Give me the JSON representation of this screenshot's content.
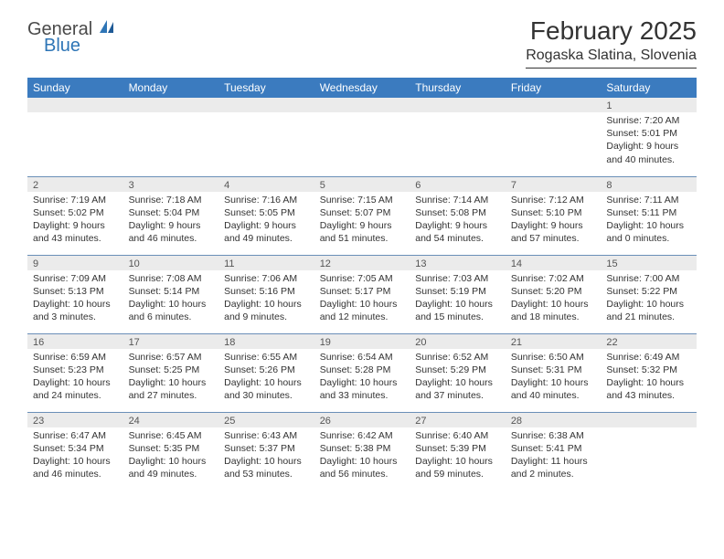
{
  "brand": {
    "name_top": "General",
    "name_bottom": "Blue",
    "accent_color": "#2e75b6"
  },
  "header": {
    "month_title": "February 2025",
    "location": "Rogaska Slatina, Slovenia"
  },
  "colors": {
    "header_bg": "#3b7bbf",
    "header_fg": "#ffffff",
    "daynum_bg": "#ebebeb",
    "week_divider": "#6a8fb8",
    "text": "#333333"
  },
  "day_headers": [
    "Sunday",
    "Monday",
    "Tuesday",
    "Wednesday",
    "Thursday",
    "Friday",
    "Saturday"
  ],
  "weeks": [
    [
      null,
      null,
      null,
      null,
      null,
      null,
      {
        "num": "1",
        "sunrise": "7:20 AM",
        "sunset": "5:01 PM",
        "daylight": "9 hours and 40 minutes."
      }
    ],
    [
      {
        "num": "2",
        "sunrise": "7:19 AM",
        "sunset": "5:02 PM",
        "daylight": "9 hours and 43 minutes."
      },
      {
        "num": "3",
        "sunrise": "7:18 AM",
        "sunset": "5:04 PM",
        "daylight": "9 hours and 46 minutes."
      },
      {
        "num": "4",
        "sunrise": "7:16 AM",
        "sunset": "5:05 PM",
        "daylight": "9 hours and 49 minutes."
      },
      {
        "num": "5",
        "sunrise": "7:15 AM",
        "sunset": "5:07 PM",
        "daylight": "9 hours and 51 minutes."
      },
      {
        "num": "6",
        "sunrise": "7:14 AM",
        "sunset": "5:08 PM",
        "daylight": "9 hours and 54 minutes."
      },
      {
        "num": "7",
        "sunrise": "7:12 AM",
        "sunset": "5:10 PM",
        "daylight": "9 hours and 57 minutes."
      },
      {
        "num": "8",
        "sunrise": "7:11 AM",
        "sunset": "5:11 PM",
        "daylight": "10 hours and 0 minutes."
      }
    ],
    [
      {
        "num": "9",
        "sunrise": "7:09 AM",
        "sunset": "5:13 PM",
        "daylight": "10 hours and 3 minutes."
      },
      {
        "num": "10",
        "sunrise": "7:08 AM",
        "sunset": "5:14 PM",
        "daylight": "10 hours and 6 minutes."
      },
      {
        "num": "11",
        "sunrise": "7:06 AM",
        "sunset": "5:16 PM",
        "daylight": "10 hours and 9 minutes."
      },
      {
        "num": "12",
        "sunrise": "7:05 AM",
        "sunset": "5:17 PM",
        "daylight": "10 hours and 12 minutes."
      },
      {
        "num": "13",
        "sunrise": "7:03 AM",
        "sunset": "5:19 PM",
        "daylight": "10 hours and 15 minutes."
      },
      {
        "num": "14",
        "sunrise": "7:02 AM",
        "sunset": "5:20 PM",
        "daylight": "10 hours and 18 minutes."
      },
      {
        "num": "15",
        "sunrise": "7:00 AM",
        "sunset": "5:22 PM",
        "daylight": "10 hours and 21 minutes."
      }
    ],
    [
      {
        "num": "16",
        "sunrise": "6:59 AM",
        "sunset": "5:23 PM",
        "daylight": "10 hours and 24 minutes."
      },
      {
        "num": "17",
        "sunrise": "6:57 AM",
        "sunset": "5:25 PM",
        "daylight": "10 hours and 27 minutes."
      },
      {
        "num": "18",
        "sunrise": "6:55 AM",
        "sunset": "5:26 PM",
        "daylight": "10 hours and 30 minutes."
      },
      {
        "num": "19",
        "sunrise": "6:54 AM",
        "sunset": "5:28 PM",
        "daylight": "10 hours and 33 minutes."
      },
      {
        "num": "20",
        "sunrise": "6:52 AM",
        "sunset": "5:29 PM",
        "daylight": "10 hours and 37 minutes."
      },
      {
        "num": "21",
        "sunrise": "6:50 AM",
        "sunset": "5:31 PM",
        "daylight": "10 hours and 40 minutes."
      },
      {
        "num": "22",
        "sunrise": "6:49 AM",
        "sunset": "5:32 PM",
        "daylight": "10 hours and 43 minutes."
      }
    ],
    [
      {
        "num": "23",
        "sunrise": "6:47 AM",
        "sunset": "5:34 PM",
        "daylight": "10 hours and 46 minutes."
      },
      {
        "num": "24",
        "sunrise": "6:45 AM",
        "sunset": "5:35 PM",
        "daylight": "10 hours and 49 minutes."
      },
      {
        "num": "25",
        "sunrise": "6:43 AM",
        "sunset": "5:37 PM",
        "daylight": "10 hours and 53 minutes."
      },
      {
        "num": "26",
        "sunrise": "6:42 AM",
        "sunset": "5:38 PM",
        "daylight": "10 hours and 56 minutes."
      },
      {
        "num": "27",
        "sunrise": "6:40 AM",
        "sunset": "5:39 PM",
        "daylight": "10 hours and 59 minutes."
      },
      {
        "num": "28",
        "sunrise": "6:38 AM",
        "sunset": "5:41 PM",
        "daylight": "11 hours and 2 minutes."
      },
      null
    ]
  ],
  "labels": {
    "sunrise": "Sunrise:",
    "sunset": "Sunset:",
    "daylight": "Daylight:"
  }
}
